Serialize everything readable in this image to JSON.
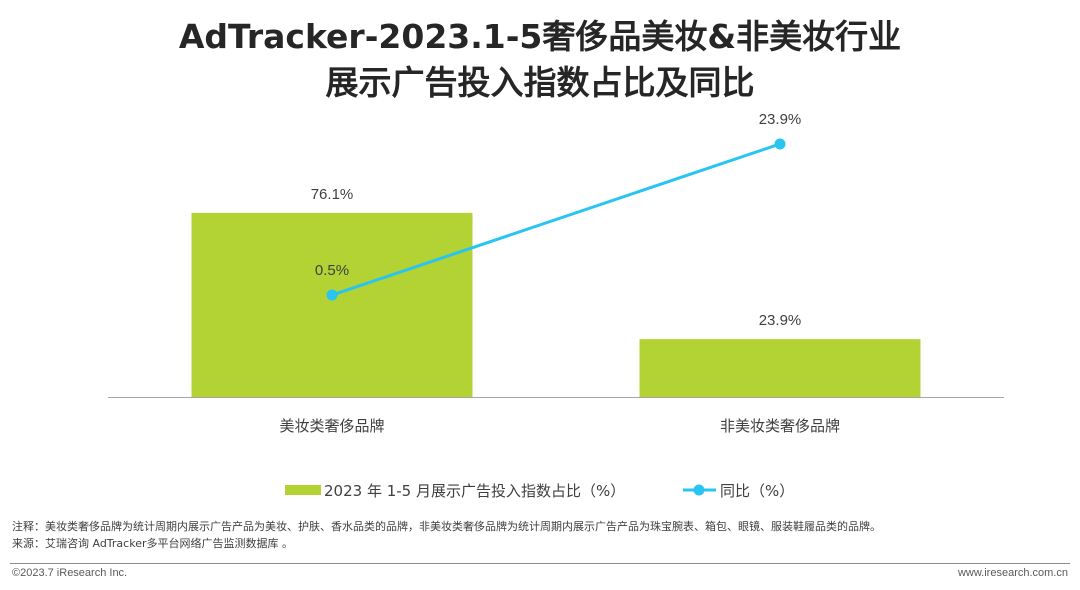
{
  "title_line1": "AdTracker-2023.1-5奢侈品美妆&非美妆行业",
  "title_line2": "展示广告投入指数占比及同比",
  "chart_data": {
    "type": "bar",
    "categories": [
      "美妆类奢侈品牌",
      "非美妆类奢侈品牌"
    ],
    "series": [
      {
        "name": "2023 年 1-5 月展示广告投入指数占比（%）",
        "type": "bar",
        "values": [
          76.1,
          23.9
        ],
        "labels": [
          "76.1%",
          "23.9%"
        ],
        "color": "#b3d334"
      },
      {
        "name": "同比（%）",
        "type": "line",
        "values": [
          0.5,
          23.9
        ],
        "labels": [
          "0.5%",
          "23.9%"
        ],
        "color": "#29c4ef"
      }
    ],
    "bar_ylim": [
      0,
      100
    ],
    "line_ylim": [
      -30,
      40
    ],
    "grid": false,
    "legend_position": "bottom"
  },
  "notes": {
    "note": "注释：美妆类奢侈品牌为统计周期内展示广告产品为美妆、护肤、香水品类的品牌，非美妆类奢侈品牌为统计周期内展示广告产品为珠宝腕表、箱包、眼镜、服装鞋履品类的品牌。",
    "source": "来源：艾瑞咨询 AdTracker多平台网络广告监测数据库 。"
  },
  "footer": {
    "copyright": "©2023.7 iResearch Inc.",
    "website": "www.iresearch.com.cn"
  }
}
